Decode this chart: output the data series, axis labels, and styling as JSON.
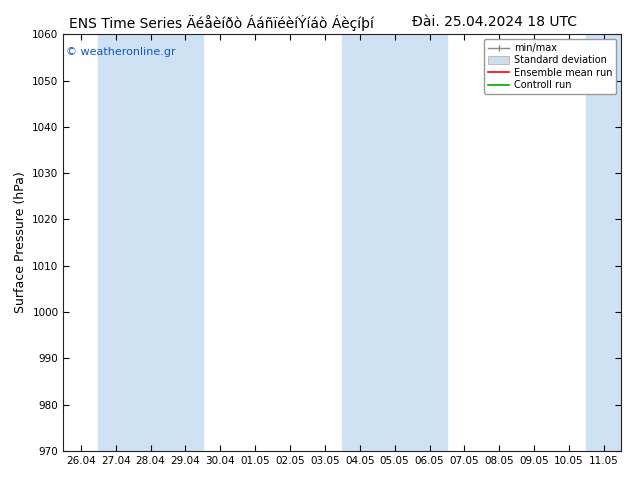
{
  "title_left": "ENS Time Series Äéåèíðò ÁáñïéèíÝíáò Áèçíþí",
  "title_right": "Đài. 25.04.2024 18 UTC",
  "ylabel": "Surface Pressure (hPa)",
  "ylim": [
    970,
    1060
  ],
  "yticks": [
    970,
    980,
    990,
    1000,
    1010,
    1020,
    1030,
    1040,
    1050,
    1060
  ],
  "xtick_labels": [
    "26.04",
    "27.04",
    "28.04",
    "29.04",
    "30.04",
    "01.05",
    "02.05",
    "03.05",
    "04.05",
    "05.05",
    "06.05",
    "07.05",
    "08.05",
    "09.05",
    "10.05",
    "11.05"
  ],
  "shaded_indices": [
    1,
    2,
    3,
    8,
    9,
    10,
    15
  ],
  "shade_color": "#cfe2f3",
  "bg_color": "#ffffff",
  "plot_bg_color": "#ffffff",
  "watermark": "© weatheronline.gr",
  "legend_items": [
    "min/max",
    "Standard deviation",
    "Ensemble mean run",
    "Controll run"
  ],
  "legend_colors_line": [
    "#888888",
    "#aaaaaa",
    "#ff0000",
    "#00aa00"
  ],
  "title_fontsize": 10,
  "tick_fontsize": 7.5,
  "ylabel_fontsize": 9,
  "watermark_color": "#1155cc"
}
